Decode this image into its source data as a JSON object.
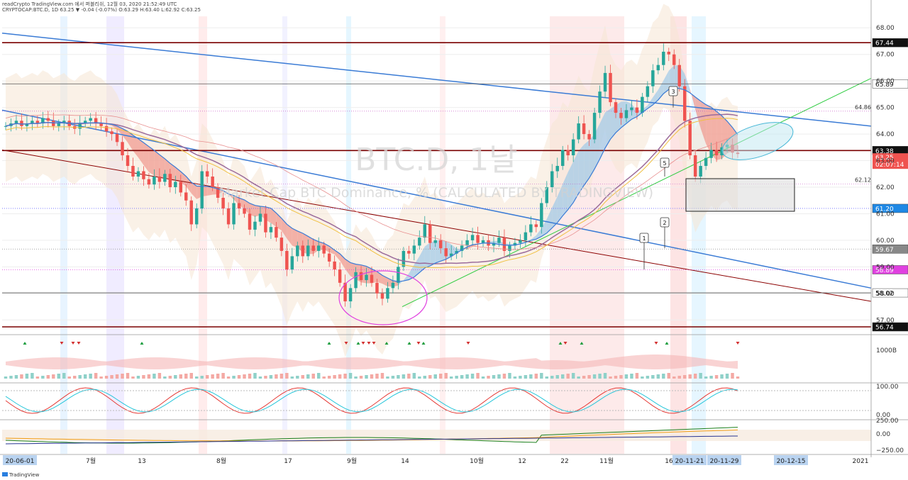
{
  "header": {
    "line1": "readCrypto TradingView.com 에서 퍼블리쉬, 12월 03, 2020 21:52:49 UTC",
    "line2": "CRYPTOCAP:BTC.D, 1D 63.25 ▼ -0.04 (-0.07%) O:63.29 H:63.40 L:62.92 C:63.25"
  },
  "watermark": {
    "symbol": "BTC.D, 1날",
    "description": "Market Cap BTC Dominance, % (CALCULATED BY TRADINGVIEW)"
  },
  "branding": {
    "logo_text": "TradingView"
  },
  "colors": {
    "red_line": "#8b0000",
    "blue_line": "#3a7bd5",
    "green_line": "#2ecc40",
    "candle_up": "#26a69a",
    "candle_down": "#ef5350",
    "price_tag": "#1e88e5",
    "current_tag": "#ef5350"
  },
  "chart_data": {
    "type": "candlestick",
    "title": "BTC.D, 1날",
    "subtitle": "Market Cap BTC Dominance, % (CALCULATED BY TRADINGVIEW)",
    "ylim": [
      56.5,
      68.3
    ],
    "y_ticks": [
      57.0,
      58.0,
      59.0,
      60.0,
      61.0,
      62.0,
      63.0,
      64.0,
      65.0,
      66.0,
      67.0,
      68.0
    ],
    "x_labels": [
      "20-06-01",
      "7월",
      "13",
      "8월",
      "17",
      "9월",
      "14",
      "10월",
      "12",
      "22",
      "11월",
      "16",
      "20-11-21",
      "20-11-29",
      "20-12-15",
      "2021"
    ],
    "last_price": 63.25,
    "countdown": "02:07:14",
    "price_levels": [
      {
        "label": "67.44",
        "value": 67.44,
        "style": "dark"
      },
      {
        "label": "65.89",
        "value": 65.89,
        "style": "plain"
      },
      {
        "label": "63.38",
        "value": 63.38,
        "style": "dark"
      },
      {
        "label": "61.20",
        "value": 61.2,
        "style": "blue"
      },
      {
        "label": "59.67",
        "value": 59.67,
        "style": "grey"
      },
      {
        "label": "58.89",
        "value": 58.89,
        "style": "magenta"
      },
      {
        "label": "58.02",
        "value": 58.02,
        "style": "plain"
      },
      {
        "label": "56.74",
        "value": 56.74,
        "style": "dark"
      }
    ],
    "inline_levels": [
      {
        "label": "64.86",
        "value": 64.86
      },
      {
        "label": "62.12",
        "value": 62.12
      }
    ],
    "wave_labels": [
      "1",
      "2",
      "3",
      "5"
    ],
    "closes": [
      64.3,
      64.4,
      64.5,
      64.3,
      64.4,
      64.5,
      64.4,
      64.6,
      64.5,
      64.3,
      64.4,
      64.5,
      64.3,
      64.2,
      64.4,
      64.5,
      64.6,
      64.4,
      64.3,
      64.1,
      64.0,
      63.7,
      63.2,
      62.8,
      62.4,
      62.6,
      62.3,
      62.1,
      62.4,
      62.2,
      62.5,
      62.0,
      62.2,
      61.8,
      61.5,
      60.6,
      61.2,
      62.6,
      62.4,
      62.0,
      61.6,
      61.2,
      60.6,
      61.4,
      61.2,
      61.0,
      60.4,
      60.7,
      61.0,
      60.3,
      60.5,
      60.1,
      59.6,
      58.9,
      59.4,
      59.8,
      59.4,
      59.8,
      59.6,
      59.8,
      59.5,
      59.2,
      58.9,
      58.4,
      57.7,
      58.2,
      58.8,
      58.5,
      58.7,
      58.4,
      58.0,
      57.8,
      58.2,
      58.4,
      59.0,
      59.6,
      59.5,
      59.8,
      60.1,
      60.6,
      59.9,
      60.0,
      59.7,
      59.4,
      59.5,
      59.6,
      59.8,
      60.0,
      60.2,
      59.9,
      60.0,
      59.8,
      59.9,
      60.1,
      59.6,
      59.8,
      59.9,
      60.0,
      60.3,
      60.6,
      60.5,
      61.4,
      62.0,
      62.6,
      62.8,
      63.4,
      63.2,
      63.8,
      64.4,
      64.0,
      63.8,
      64.8,
      65.6,
      66.3,
      65.2,
      64.8,
      64.6,
      64.9,
      65.0,
      64.8,
      65.4,
      65.8,
      66.4,
      66.6,
      67.1,
      67.0,
      66.6,
      65.8,
      64.5,
      63.2,
      62.4,
      62.8,
      63.1,
      63.4,
      63.2,
      63.5,
      63.6,
      63.3,
      63.25
    ],
    "volume_label": "1000B",
    "stoch_labels": [
      "100.00",
      "0.00"
    ],
    "osc_labels": [
      "250.00",
      "0.00",
      "−250.00"
    ]
  }
}
